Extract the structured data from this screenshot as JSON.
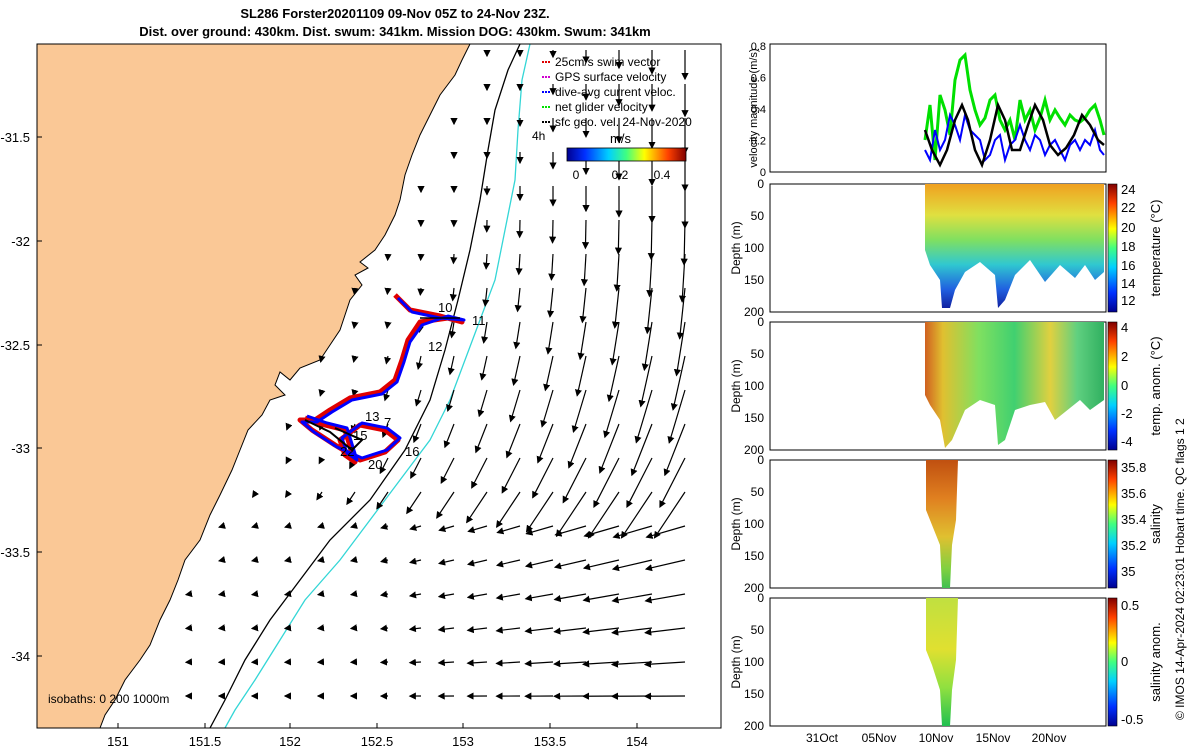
{
  "header": {
    "title_line1": "SL286 Forster20201109 09-Nov 05Z to 24-Nov 23Z.",
    "title_line2": "Dist. over ground: 430km. Dist. swum: 341km. Mission DOG: 430km. Swum: 341km"
  },
  "map": {
    "lon_ticks": [
      "151",
      "151.5",
      "152",
      "152.5",
      "153",
      "153.5",
      "154"
    ],
    "lat_ticks": [
      "-31.5",
      "-32",
      "-32.5",
      "-33",
      "-33.5",
      "-34"
    ],
    "legend": [
      {
        "label": "25cm/s swim vector",
        "color": "#e00000"
      },
      {
        "label": "GPS surface velocity",
        "color": "#d000d0"
      },
      {
        "label": "dive-avg current veloc.",
        "color": "#0000ff"
      },
      {
        "label": "net glider velocity",
        "color": "#00e000"
      },
      {
        "label": "sfc geo. vel. 24-Nov-2020",
        "color": "#000000"
      }
    ],
    "tag_4h": "4h",
    "colorbar_title": "m/s",
    "colorbar_ticks": [
      "0",
      "0.2",
      "0.4"
    ],
    "isobaths_label": "isobaths: 0   200  1000m",
    "day_labels": [
      "10",
      "11",
      "12",
      "13",
      "15",
      "16",
      "20",
      "22",
      "7"
    ],
    "land_color": "#fac896",
    "isobath_200_color": "#000000",
    "isobath_1000_color": "#33d6d6"
  },
  "panels": {
    "velocity": {
      "ylabel": "velocity magnitude (m/s)",
      "yticks": [
        "0",
        "0.2",
        "0.4",
        "0.6",
        "0.8"
      ]
    },
    "temperature": {
      "ylabel": "Depth (m)",
      "yticks": [
        "0",
        "50",
        "100",
        "150",
        "200"
      ],
      "cb_label": "temperature (°C)",
      "cb_ticks": [
        "24",
        "22",
        "20",
        "18",
        "16",
        "14",
        "12"
      ]
    },
    "temp_anom": {
      "ylabel": "Depth (m)",
      "yticks": [
        "0",
        "50",
        "100",
        "150",
        "200"
      ],
      "cb_label": "temp. anom. (°C)",
      "cb_ticks": [
        "4",
        "2",
        "0",
        "-2",
        "-4"
      ]
    },
    "salinity": {
      "ylabel": "Depth (m)",
      "yticks": [
        "0",
        "50",
        "100",
        "150",
        "200"
      ],
      "cb_label": "salinity",
      "cb_ticks": [
        "35.8",
        "35.6",
        "35.4",
        "35.2",
        "35"
      ]
    },
    "sal_anom": {
      "ylabel": "Depth (m)",
      "yticks": [
        "0",
        "50",
        "100",
        "150",
        "200"
      ],
      "cb_label": "salinity anom.",
      "cb_ticks": [
        "0.5",
        "0",
        "-0.5"
      ]
    },
    "xticks": [
      "31Oct",
      "05Nov",
      "10Nov",
      "15Nov",
      "20Nov"
    ],
    "side_note": "© IMOS 14-Apr-2024 02:23:01 Hobart time. QC flags 1  2"
  }
}
